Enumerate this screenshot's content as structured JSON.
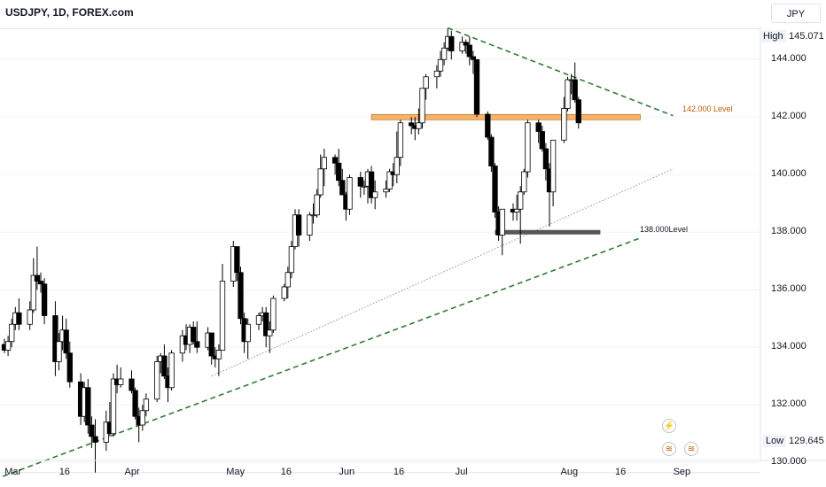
{
  "header": {
    "title": "USDJPY, 1D, FOREX.com",
    "currency": "JPY"
  },
  "markers": {
    "high_label": "High",
    "high_value": "145.071",
    "low_label": "Low",
    "low_value": "129.645"
  },
  "levels": {
    "resistance_label": "142.000 Level",
    "support_label": "138.000Level"
  },
  "events": {
    "icon1": "lightning-icon",
    "icon2": "economic-event-icon"
  },
  "colors": {
    "up_body": "#ffffff",
    "down_body": "#000000",
    "candle_border": "#000000",
    "trendline": "#2e7d32",
    "resistance_zone": "#f6b26b",
    "support_zone": "#555555",
    "resistance_text": "#b45f06",
    "axis_text": "#131722"
  },
  "chart_data": {
    "type": "candlestick",
    "symbol": "USDJPY",
    "timeframe": "1D",
    "source": "FOREX.com",
    "ylim": [
      129.3,
      145.3
    ],
    "y_ticks": [
      130,
      132,
      134,
      136,
      138,
      140,
      142,
      144
    ],
    "y_tick_labels": [
      "130.000",
      "132.000",
      "134.000",
      "136.000",
      "138.000",
      "140.000",
      "142.000",
      "144.000"
    ],
    "x_labels": [
      "Mar",
      "16",
      "Apr",
      "May",
      "16",
      "Jun",
      "16",
      "Jul",
      "Aug",
      "16",
      "Sep"
    ],
    "x_label_dates": [
      "2023-03-01",
      "2023-03-16",
      "2023-04-03",
      "2023-05-01",
      "2023-05-16",
      "2023-06-01",
      "2023-06-16",
      "2023-07-03",
      "2023-08-01",
      "2023-08-16",
      "2023-09-01"
    ],
    "high": 145.071,
    "low": 129.645,
    "levels": [
      {
        "name": "142.000 Level",
        "value": 142.0
      },
      {
        "name": "138.000Level",
        "value": 138.0
      }
    ],
    "trendlines": [
      {
        "style": "dashed",
        "from": [
          "2023-02-22",
          129.3
        ],
        "to": [
          "2023-08-21",
          137.8
        ]
      },
      {
        "style": "dotted",
        "from": [
          "2023-04-25",
          133.0
        ],
        "to": [
          "2023-08-30",
          140.2
        ]
      },
      {
        "style": "dashed",
        "from": [
          "2023-06-29",
          145.1
        ],
        "to": [
          "2023-08-30",
          142.05
        ]
      }
    ],
    "candles": [
      [
        "2023-02-27",
        134.1,
        134.3,
        133.8,
        133.9
      ],
      [
        "2023-02-28",
        133.9,
        134.4,
        133.7,
        134.2
      ],
      [
        "2023-03-01",
        134.2,
        135.0,
        134.0,
        134.8
      ],
      [
        "2023-03-02",
        134.8,
        135.4,
        134.6,
        135.2
      ],
      [
        "2023-03-03",
        135.2,
        135.7,
        134.6,
        134.8
      ],
      [
        "2023-03-06",
        134.8,
        135.6,
        134.6,
        135.3
      ],
      [
        "2023-03-07",
        135.3,
        137.1,
        135.2,
        136.5
      ],
      [
        "2023-03-08",
        136.5,
        137.5,
        136.0,
        136.3
      ],
      [
        "2023-03-09",
        136.3,
        136.6,
        135.9,
        136.2
      ],
      [
        "2023-03-10",
        136.2,
        136.4,
        134.8,
        135.1
      ],
      [
        "2023-03-13",
        135.1,
        135.6,
        133.0,
        133.5
      ],
      [
        "2023-03-14",
        133.5,
        134.5,
        133.2,
        134.2
      ],
      [
        "2023-03-15",
        134.2,
        135.1,
        133.9,
        134.6
      ],
      [
        "2023-03-16",
        134.6,
        135.0,
        133.6,
        133.8
      ],
      [
        "2023-03-17",
        133.8,
        134.2,
        132.6,
        132.8
      ],
      [
        "2023-03-20",
        132.8,
        133.1,
        131.3,
        131.6
      ],
      [
        "2023-03-21",
        131.6,
        132.8,
        131.4,
        132.6
      ],
      [
        "2023-03-22",
        132.6,
        132.9,
        131.0,
        131.3
      ],
      [
        "2023-03-23",
        131.3,
        131.6,
        130.5,
        130.9
      ],
      [
        "2023-03-24",
        130.9,
        131.5,
        129.645,
        130.7
      ],
      [
        "2023-03-27",
        130.7,
        131.8,
        130.4,
        131.4
      ],
      [
        "2023-03-28",
        131.4,
        132.1,
        130.9,
        131.0
      ],
      [
        "2023-03-29",
        131.0,
        133.1,
        130.9,
        132.9
      ],
      [
        "2023-03-30",
        132.9,
        133.4,
        132.4,
        132.7
      ],
      [
        "2023-03-31",
        132.7,
        133.3,
        132.6,
        132.9
      ],
      [
        "2023-04-03",
        132.9,
        133.2,
        132.4,
        132.5
      ],
      [
        "2023-04-04",
        132.5,
        132.6,
        131.5,
        131.6
      ],
      [
        "2023-04-05",
        131.6,
        131.9,
        130.7,
        131.3
      ],
      [
        "2023-04-06",
        131.3,
        132.0,
        131.1,
        131.8
      ],
      [
        "2023-04-07",
        131.8,
        132.4,
        131.6,
        132.2
      ],
      [
        "2023-04-10",
        132.2,
        133.7,
        132.1,
        133.5
      ],
      [
        "2023-04-11",
        133.5,
        133.8,
        133.1,
        133.7
      ],
      [
        "2023-04-12",
        133.7,
        134.1,
        132.9,
        133.0
      ],
      [
        "2023-04-13",
        133.0,
        133.3,
        132.1,
        132.6
      ],
      [
        "2023-04-14",
        132.6,
        133.9,
        132.5,
        133.8
      ],
      [
        "2023-04-17",
        133.8,
        134.6,
        133.5,
        134.4
      ],
      [
        "2023-04-18",
        134.4,
        134.8,
        133.9,
        134.1
      ],
      [
        "2023-04-19",
        134.1,
        134.8,
        133.8,
        134.7
      ],
      [
        "2023-04-20",
        134.7,
        134.9,
        134.1,
        134.2
      ],
      [
        "2023-04-21",
        134.2,
        134.9,
        133.8,
        134.0
      ],
      [
        "2023-04-24",
        134.0,
        134.7,
        133.9,
        134.5
      ],
      [
        "2023-04-25",
        134.5,
        134.5,
        133.4,
        133.7
      ],
      [
        "2023-04-26",
        133.7,
        134.0,
        133.3,
        133.6
      ],
      [
        "2023-04-27",
        133.6,
        134.1,
        133.0,
        133.9
      ],
      [
        "2023-04-28",
        133.9,
        136.9,
        133.9,
        136.3
      ],
      [
        "2023-05-01",
        136.3,
        137.7,
        136.1,
        137.5
      ],
      [
        "2023-05-02",
        137.5,
        137.5,
        136.3,
        136.6
      ],
      [
        "2023-05-03",
        136.6,
        136.8,
        134.8,
        135.0
      ],
      [
        "2023-05-04",
        135.0,
        135.2,
        133.8,
        134.2
      ],
      [
        "2023-05-05",
        134.2,
        135.0,
        133.6,
        134.8
      ],
      [
        "2023-05-08",
        134.8,
        135.2,
        134.6,
        135.1
      ],
      [
        "2023-05-09",
        135.1,
        135.4,
        134.9,
        135.2
      ],
      [
        "2023-05-10",
        135.2,
        135.4,
        134.0,
        134.4
      ],
      [
        "2023-05-11",
        134.4,
        134.9,
        133.8,
        134.6
      ],
      [
        "2023-05-12",
        134.6,
        135.8,
        134.5,
        135.7
      ],
      [
        "2023-05-15",
        135.7,
        136.2,
        135.6,
        136.1
      ],
      [
        "2023-05-16",
        136.1,
        136.8,
        135.7,
        136.6
      ],
      [
        "2023-05-17",
        136.6,
        137.7,
        136.4,
        137.5
      ],
      [
        "2023-05-18",
        137.5,
        138.8,
        137.4,
        138.6
      ],
      [
        "2023-05-19",
        138.6,
        138.8,
        137.5,
        137.9
      ],
      [
        "2023-05-22",
        137.9,
        138.7,
        137.7,
        138.6
      ],
      [
        "2023-05-23",
        138.6,
        139.0,
        138.3,
        138.6
      ],
      [
        "2023-05-24",
        138.6,
        139.5,
        138.5,
        139.3
      ],
      [
        "2023-05-25",
        139.3,
        140.7,
        139.2,
        140.2
      ],
      [
        "2023-05-26",
        140.2,
        140.9,
        139.6,
        140.6
      ],
      [
        "2023-05-29",
        140.6,
        140.7,
        140.0,
        140.4
      ],
      [
        "2023-05-30",
        140.4,
        140.9,
        139.6,
        139.8
      ],
      [
        "2023-05-31",
        139.8,
        140.2,
        139.4,
        139.3
      ],
      [
        "2023-06-01",
        139.3,
        139.4,
        138.4,
        138.8
      ],
      [
        "2023-06-02",
        138.8,
        140.0,
        138.6,
        139.9
      ],
      [
        "2023-06-05",
        139.9,
        140.1,
        139.2,
        139.6
      ],
      [
        "2023-06-06",
        139.6,
        139.8,
        139.3,
        139.6
      ],
      [
        "2023-06-07",
        139.6,
        140.2,
        139.0,
        140.1
      ],
      [
        "2023-06-08",
        140.1,
        140.3,
        139.0,
        139.2
      ],
      [
        "2023-06-09",
        139.2,
        139.8,
        138.8,
        139.4
      ],
      [
        "2023-06-12",
        139.4,
        139.8,
        139.2,
        139.5
      ],
      [
        "2023-06-13",
        139.5,
        140.2,
        139.4,
        140.1
      ],
      [
        "2023-06-14",
        140.1,
        140.4,
        139.6,
        140.0
      ],
      [
        "2023-06-15",
        140.0,
        141.5,
        139.7,
        140.6
      ],
      [
        "2023-06-16",
        140.6,
        141.9,
        140.3,
        141.8
      ],
      [
        "2023-06-19",
        141.8,
        142.0,
        141.4,
        141.7
      ],
      [
        "2023-06-20",
        141.7,
        142.0,
        141.2,
        141.6
      ],
      [
        "2023-06-21",
        141.6,
        142.3,
        141.4,
        141.8
      ],
      [
        "2023-06-22",
        141.8,
        143.0,
        141.6,
        143.0
      ],
      [
        "2023-06-23",
        143.0,
        143.5,
        142.6,
        143.4
      ],
      [
        "2023-06-26",
        143.4,
        143.8,
        143.0,
        143.6
      ],
      [
        "2023-06-27",
        143.6,
        144.3,
        143.4,
        144.0
      ],
      [
        "2023-06-28",
        144.0,
        144.6,
        143.8,
        144.4
      ],
      [
        "2023-06-29",
        144.4,
        145.071,
        144.3,
        144.8
      ],
      [
        "2023-06-30",
        144.8,
        145.0,
        144.0,
        144.3
      ],
      [
        "2023-07-03",
        144.3,
        144.8,
        144.2,
        144.6
      ],
      [
        "2023-07-04",
        144.6,
        144.7,
        144.2,
        144.5
      ],
      [
        "2023-07-05",
        144.5,
        144.8,
        143.8,
        144.1
      ],
      [
        "2023-07-06",
        144.1,
        144.3,
        143.5,
        144.0
      ],
      [
        "2023-07-07",
        144.0,
        144.0,
        142.0,
        142.1
      ],
      [
        "2023-07-10",
        142.1,
        142.2,
        141.2,
        141.3
      ],
      [
        "2023-07-11",
        141.3,
        141.4,
        140.1,
        140.3
      ],
      [
        "2023-07-12",
        140.3,
        140.4,
        138.5,
        138.7
      ],
      [
        "2023-07-13",
        138.7,
        138.9,
        137.7,
        137.9
      ],
      [
        "2023-07-14",
        137.9,
        138.8,
        137.2,
        138.8
      ],
      [
        "2023-07-17",
        138.8,
        139.0,
        138.4,
        138.7
      ],
      [
        "2023-07-18",
        138.7,
        139.3,
        138.4,
        138.8
      ],
      [
        "2023-07-19",
        138.8,
        139.6,
        137.6,
        139.4
      ],
      [
        "2023-07-20",
        139.4,
        140.2,
        139.3,
        140.1
      ],
      [
        "2023-07-21",
        140.1,
        141.9,
        139.9,
        141.8
      ],
      [
        "2023-07-24",
        141.8,
        141.9,
        141.1,
        141.5
      ],
      [
        "2023-07-25",
        141.5,
        141.7,
        140.8,
        140.9
      ],
      [
        "2023-07-26",
        140.9,
        141.1,
        139.8,
        140.2
      ],
      [
        "2023-07-27",
        140.2,
        140.4,
        138.2,
        139.4
      ],
      [
        "2023-07-28",
        139.4,
        141.1,
        138.9,
        141.2
      ],
      [
        "2023-07-31",
        141.2,
        142.7,
        141.1,
        142.3
      ],
      [
        "2023-08-01",
        142.3,
        143.4,
        142.2,
        143.3
      ],
      [
        "2023-08-02",
        143.3,
        143.5,
        142.8,
        143.3
      ],
      [
        "2023-08-03",
        143.3,
        143.9,
        142.5,
        142.6
      ],
      [
        "2023-08-04",
        142.6,
        142.7,
        141.6,
        141.8
      ]
    ]
  }
}
